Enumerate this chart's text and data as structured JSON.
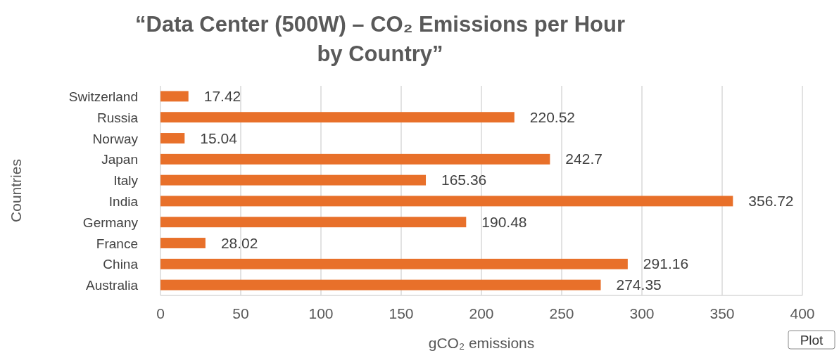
{
  "chart_data": {
    "type": "bar",
    "orientation": "horizontal",
    "title": "“Data Center (500W) – CO₂ Emissions per Hour\nby Country”",
    "xlabel": "gCO₂ emissions",
    "ylabel": "Countries",
    "categories": [
      "Switzerland",
      "Russia",
      "Norway",
      "Japan",
      "Italy",
      "India",
      "Germany",
      "France",
      "China",
      "Australia"
    ],
    "values": [
      17.42,
      220.52,
      15.04,
      242.7,
      165.36,
      356.72,
      190.48,
      28.02,
      291.16,
      274.35
    ],
    "color": "#e8702a",
    "xlim": [
      0,
      400
    ],
    "xticks": [
      0,
      50,
      100,
      150,
      200,
      250,
      300,
      350,
      400
    ],
    "grid": "x",
    "data_labels": true,
    "annotations": [
      "Plot"
    ]
  }
}
